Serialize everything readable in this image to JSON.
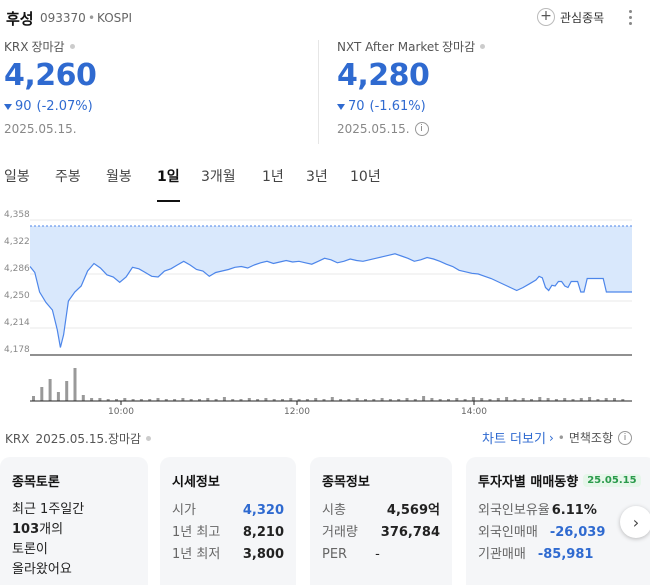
{
  "header": {
    "name": "후성",
    "code": "093370",
    "sep": "•",
    "market": "KOSPI",
    "watch_plus": "+",
    "watch_label": "관심종목"
  },
  "krx": {
    "market": "KRX",
    "state": "장마감",
    "price": "4,260",
    "change": "90",
    "change_pct": "(-2.07%)",
    "date": "2025.05.15."
  },
  "nxt": {
    "market": "NXT After Market",
    "state": "장마감",
    "price": "4,280",
    "change": "70",
    "change_pct": "(-1.61%)",
    "date": "2025.05.15.",
    "info": "i"
  },
  "tabs": [
    "일봉",
    "주봉",
    "월봉",
    "1일",
    "3개월",
    "1년",
    "3년",
    "10년"
  ],
  "active_tab": 3,
  "chart_data": {
    "type": "area",
    "y_ticks": [
      "4,358",
      "4,322",
      "4,286",
      "4,250",
      "4,214",
      "4,178"
    ],
    "ylim": [
      4178,
      4358
    ],
    "x_ticks": [
      "10:00",
      "12:00",
      "14:00"
    ],
    "reference_price": 4350,
    "colors": {
      "line": "#4d86ea",
      "fill": "#d9e8fc",
      "volume": "#999999"
    }
  },
  "footer": {
    "market": "KRX",
    "date": "2025.05.15.",
    "state": "장마감",
    "more_chart": "차트 더보기",
    "chevron": "›",
    "mid": "•",
    "disclaimer": "면책조항",
    "info": "i"
  },
  "cards": {
    "discussion": {
      "title": "종목토론",
      "line1": "최근 1주일간",
      "count": "103",
      "unit": "개의",
      "line3": "토론이",
      "line4": "올라왔어요"
    },
    "quote": {
      "title": "시세정보",
      "rows": [
        {
          "k": "시가",
          "v": "4,320"
        },
        {
          "k": "1년 최고",
          "v": "8,210"
        },
        {
          "k": "1년 최저",
          "v": "3,800"
        }
      ]
    },
    "info": {
      "title": "종목정보",
      "rows": [
        {
          "k": "시총",
          "v": "4,569억"
        },
        {
          "k": "거래량",
          "v": "376,784"
        },
        {
          "k": "PER",
          "v": "-"
        }
      ]
    },
    "investor": {
      "title": "투자자별 매매동향",
      "badge": "25.05.15",
      "rows": [
        {
          "k": "외국인보유율",
          "v": "6.11%"
        },
        {
          "k": "외국인매매",
          "v": "-26,039"
        },
        {
          "k": "기관매매",
          "v": "-85,981"
        }
      ]
    }
  },
  "next_arrow": "›"
}
